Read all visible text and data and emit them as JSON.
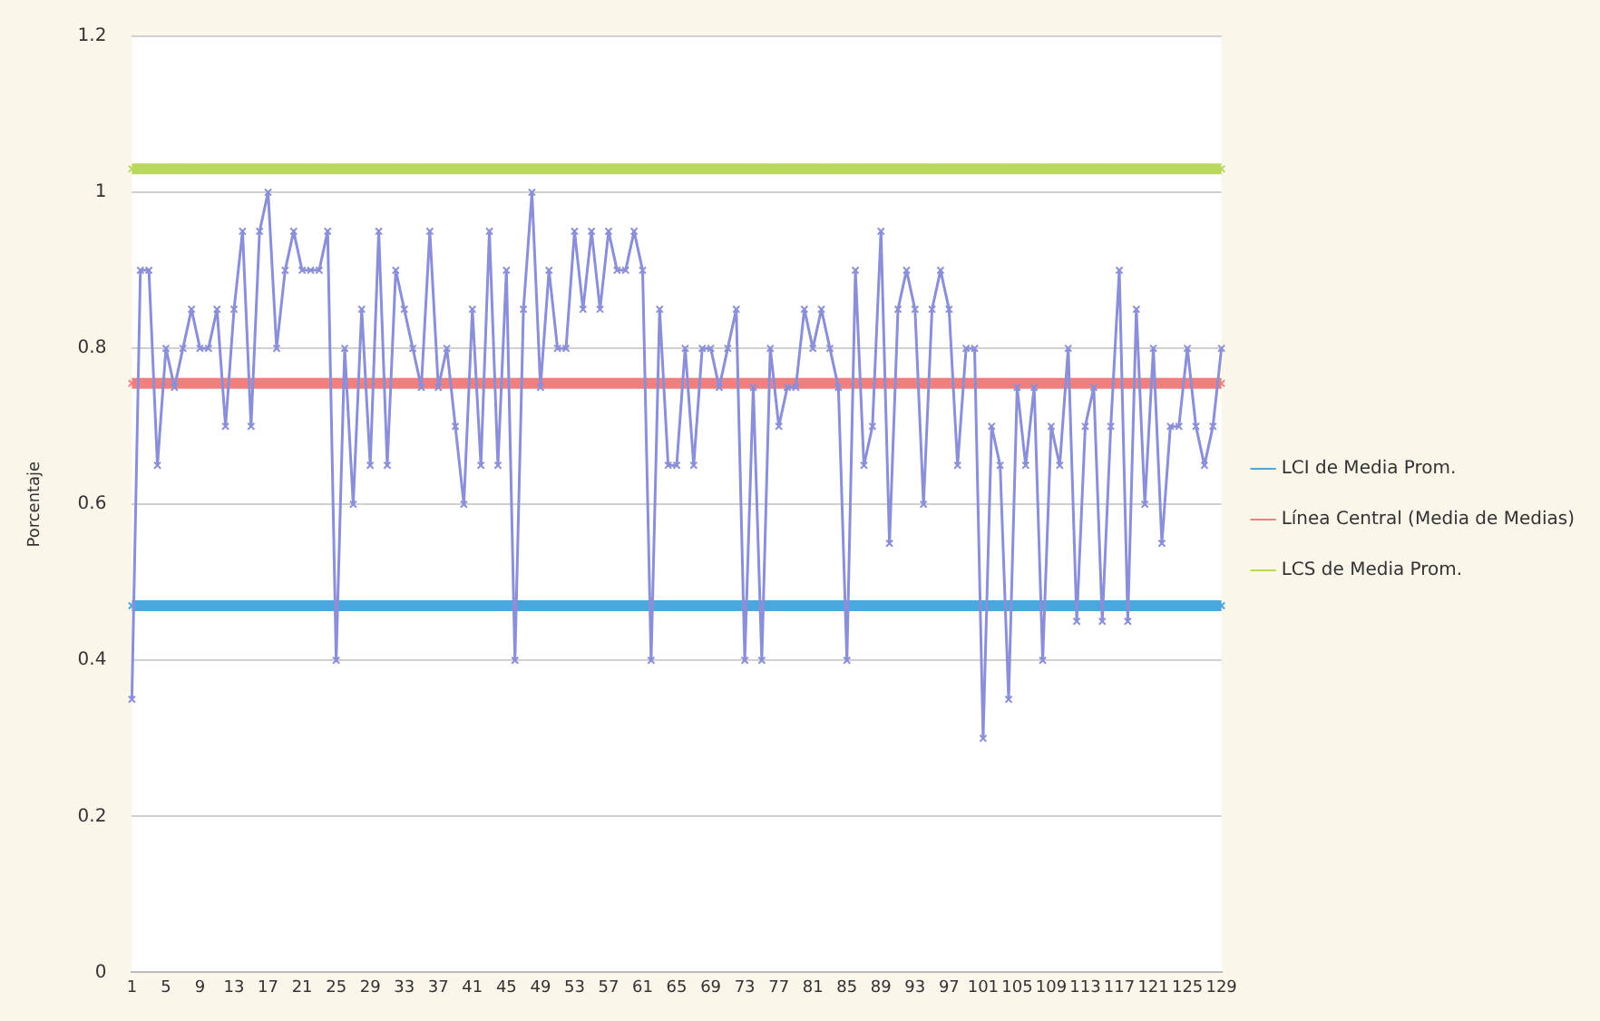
{
  "chart_data": {
    "type": "line",
    "ylabel": "Porcentaje",
    "categories": [
      "1",
      null,
      null,
      null,
      "5",
      null,
      null,
      null,
      "9",
      null,
      null,
      null,
      "13",
      null,
      null,
      null,
      "17",
      null,
      null,
      null,
      "21",
      null,
      null,
      null,
      "25",
      null,
      null,
      null,
      "29",
      null,
      null,
      null,
      "33",
      null,
      null,
      null,
      "37",
      null,
      null,
      null,
      "41",
      null,
      null,
      null,
      "45",
      null,
      null,
      null,
      "49",
      null,
      null,
      null,
      "53",
      null,
      null,
      null,
      "57",
      null,
      null,
      null,
      "61",
      null,
      null,
      null,
      "65",
      null,
      null,
      null,
      "69",
      null,
      null,
      null,
      "73",
      null,
      null,
      null,
      "77",
      null,
      null,
      null,
      "81",
      null,
      null,
      null,
      "85",
      null,
      null,
      null,
      "89",
      null,
      null,
      null,
      "93",
      null,
      null,
      null,
      "97",
      null,
      null,
      null,
      "101",
      null,
      null,
      null,
      "105",
      null,
      null,
      null,
      "109",
      null,
      null,
      null,
      "113",
      null,
      null,
      null,
      "117",
      null,
      null,
      null,
      "121",
      null,
      null,
      null,
      "125",
      null,
      null,
      null,
      "129"
    ],
    "series": [
      {
        "color": "#8b8fd8",
        "values": [
          0.35,
          0.9,
          0.9,
          0.65,
          0.8,
          0.75,
          0.8,
          0.85,
          0.8,
          0.8,
          0.85,
          0.7,
          0.85,
          0.95,
          0.7,
          0.95,
          1.0,
          0.8,
          0.9,
          0.95,
          0.9,
          0.9,
          0.9,
          0.95,
          0.4,
          0.8,
          0.6,
          0.85,
          0.65,
          0.95,
          0.65,
          0.9,
          0.85,
          0.8,
          0.75,
          0.95,
          0.75,
          0.8,
          0.7,
          0.6,
          0.85,
          0.65,
          0.95,
          0.65,
          0.9,
          0.4,
          0.85,
          1.0,
          0.75,
          0.9,
          0.8,
          0.8,
          0.95,
          0.85,
          0.95,
          0.85,
          0.95,
          0.9,
          0.9,
          0.95,
          0.9,
          0.4,
          0.85,
          0.65,
          0.65,
          0.8,
          0.65,
          0.8,
          0.8,
          0.75,
          0.8,
          0.85,
          0.4,
          0.75,
          0.4,
          0.8,
          0.7,
          0.75,
          0.75,
          0.85,
          0.8,
          0.85,
          0.8,
          0.75,
          0.4,
          0.9,
          0.65,
          0.7,
          0.95,
          0.55,
          0.85,
          0.9,
          0.85,
          0.6,
          0.85,
          0.9,
          0.85,
          0.65,
          0.8,
          0.8,
          0.3,
          0.7,
          0.65,
          0.35,
          0.75,
          0.65,
          0.75,
          0.4,
          0.7,
          0.65,
          0.8,
          0.45,
          0.7,
          0.75,
          0.45,
          0.7,
          0.9,
          0.45,
          0.85,
          0.6,
          0.8,
          0.55,
          0.7,
          0.7,
          0.8,
          0.7,
          0.65,
          0.7,
          0.8
        ]
      },
      {
        "name": "LCI de Media Prom.",
        "color": "#4aa8e0",
        "values": [
          0.47,
          0.47,
          0.47,
          0.47,
          0.47,
          0.47,
          0.47,
          0.47,
          0.47,
          0.47,
          0.47,
          0.47,
          0.47,
          0.47,
          0.47,
          0.47,
          0.47,
          0.47,
          0.47,
          0.47,
          0.47,
          0.47,
          0.47,
          0.47,
          0.47,
          0.47,
          0.47,
          0.47,
          0.47,
          0.47,
          0.47,
          0.47,
          0.47,
          0.47,
          0.47,
          0.47,
          0.47,
          0.47,
          0.47,
          0.47,
          0.47,
          0.47,
          0.47,
          0.47,
          0.47,
          0.47,
          0.47,
          0.47,
          0.47,
          0.47,
          0.47,
          0.47,
          0.47,
          0.47,
          0.47,
          0.47,
          0.47,
          0.47,
          0.47,
          0.47,
          0.47,
          0.47,
          0.47,
          0.47,
          0.47,
          0.47,
          0.47,
          0.47,
          0.47,
          0.47,
          0.47,
          0.47,
          0.47,
          0.47,
          0.47,
          0.47,
          0.47,
          0.47,
          0.47,
          0.47,
          0.47,
          0.47,
          0.47,
          0.47,
          0.47,
          0.47,
          0.47,
          0.47,
          0.47,
          0.47,
          0.47,
          0.47,
          0.47,
          0.47,
          0.47,
          0.47,
          0.47,
          0.47,
          0.47,
          0.47,
          0.47,
          0.47,
          0.47,
          0.47,
          0.47,
          0.47,
          0.47,
          0.47,
          0.47,
          0.47,
          0.47,
          0.47,
          0.47,
          0.47,
          0.47,
          0.47,
          0.47,
          0.47,
          0.47,
          0.47,
          0.47,
          0.47,
          0.47,
          0.47,
          0.47,
          0.47,
          0.47,
          0.47,
          0.47
        ]
      },
      {
        "name": "Línea Central (Media de Medias)",
        "color": "#f08080",
        "values": [
          0.755,
          0.755,
          0.755,
          0.755,
          0.755,
          0.755,
          0.755,
          0.755,
          0.755,
          0.755,
          0.755,
          0.755,
          0.755,
          0.755,
          0.755,
          0.755,
          0.755,
          0.755,
          0.755,
          0.755,
          0.755,
          0.755,
          0.755,
          0.755,
          0.755,
          0.755,
          0.755,
          0.755,
          0.755,
          0.755,
          0.755,
          0.755,
          0.755,
          0.755,
          0.755,
          0.755,
          0.755,
          0.755,
          0.755,
          0.755,
          0.755,
          0.755,
          0.755,
          0.755,
          0.755,
          0.755,
          0.755,
          0.755,
          0.755,
          0.755,
          0.755,
          0.755,
          0.755,
          0.755,
          0.755,
          0.755,
          0.755,
          0.755,
          0.755,
          0.755,
          0.755,
          0.755,
          0.755,
          0.755,
          0.755,
          0.755,
          0.755,
          0.755,
          0.755,
          0.755,
          0.755,
          0.755,
          0.755,
          0.755,
          0.755,
          0.755,
          0.755,
          0.755,
          0.755,
          0.755,
          0.755,
          0.755,
          0.755,
          0.755,
          0.755,
          0.755,
          0.755,
          0.755,
          0.755,
          0.755,
          0.755,
          0.755,
          0.755,
          0.755,
          0.755,
          0.755,
          0.755,
          0.755,
          0.755,
          0.755,
          0.755,
          0.755,
          0.755,
          0.755,
          0.755,
          0.755,
          0.755,
          0.755,
          0.755,
          0.755,
          0.755,
          0.755,
          0.755,
          0.755,
          0.755,
          0.755,
          0.755,
          0.755,
          0.755,
          0.755,
          0.755,
          0.755,
          0.755,
          0.755,
          0.755,
          0.755,
          0.755,
          0.755,
          0.755
        ]
      },
      {
        "name": "LCS de Media Prom.",
        "color": "#b8d860",
        "values": [
          1.03,
          1.03,
          1.03,
          1.03,
          1.03,
          1.03,
          1.03,
          1.03,
          1.03,
          1.03,
          1.03,
          1.03,
          1.03,
          1.03,
          1.03,
          1.03,
          1.03,
          1.03,
          1.03,
          1.03,
          1.03,
          1.03,
          1.03,
          1.03,
          1.03,
          1.03,
          1.03,
          1.03,
          1.03,
          1.03,
          1.03,
          1.03,
          1.03,
          1.03,
          1.03,
          1.03,
          1.03,
          1.03,
          1.03,
          1.03,
          1.03,
          1.03,
          1.03,
          1.03,
          1.03,
          1.03,
          1.03,
          1.03,
          1.03,
          1.03,
          1.03,
          1.03,
          1.03,
          1.03,
          1.03,
          1.03,
          1.03,
          1.03,
          1.03,
          1.03,
          1.03,
          1.03,
          1.03,
          1.03,
          1.03,
          1.03,
          1.03,
          1.03,
          1.03,
          1.03,
          1.03,
          1.03,
          1.03,
          1.03,
          1.03,
          1.03,
          1.03,
          1.03,
          1.03,
          1.03,
          1.03,
          1.03,
          1.03,
          1.03,
          1.03,
          1.03,
          1.03,
          1.03,
          1.03,
          1.03,
          1.03,
          1.03,
          1.03,
          1.03,
          1.03,
          1.03,
          1.03,
          1.03,
          1.03,
          1.03,
          1.03,
          1.03,
          1.03,
          1.03,
          1.03,
          1.03,
          1.03,
          1.03,
          1.03,
          1.03,
          1.03,
          1.03,
          1.03,
          1.03,
          1.03,
          1.03,
          1.03,
          1.03,
          1.03,
          1.03,
          1.03,
          1.03,
          1.03,
          1.03,
          1.03,
          1.03,
          1.03,
          1.03,
          1.03
        ]
      }
    ],
    "ylim": [
      0,
      1.2
    ],
    "yticks": [
      0,
      0.2,
      0.4,
      0.6,
      0.8,
      1,
      1.2
    ],
    "grid": "y",
    "legend": "right",
    "marker": "cross"
  }
}
